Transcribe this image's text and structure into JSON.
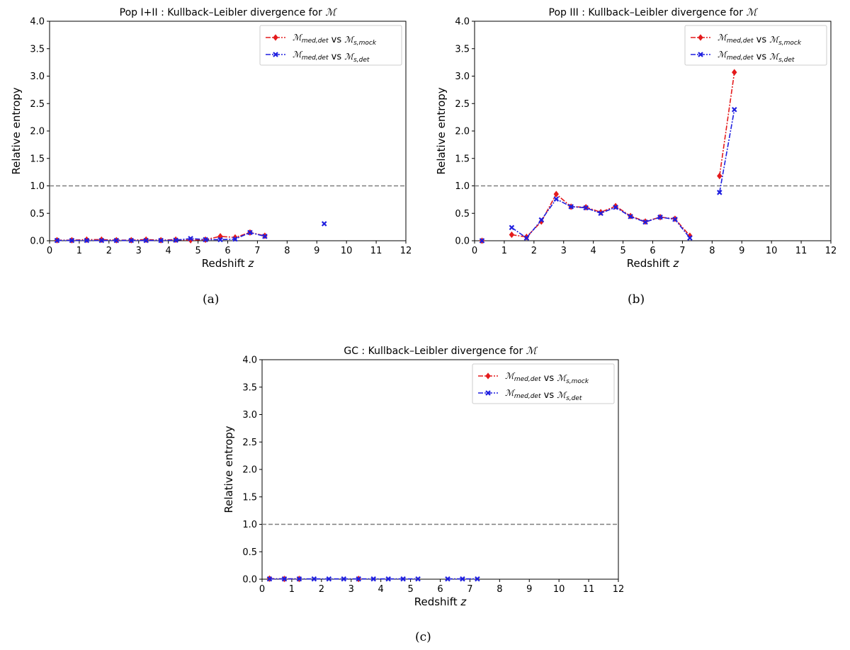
{
  "figure": {
    "captions": [
      "(a)",
      "(b)",
      "(c)"
    ]
  },
  "colors": {
    "series1": "#e41a1c",
    "series2": "#1f1fe0",
    "reference": "#7f7f7f"
  },
  "chart_data": [
    {
      "type": "line",
      "title": "Pop I+II : Kullback–Leibler divergence for ℳ",
      "xlabel": "Redshift z",
      "ylabel": "Relative entropy",
      "xlim": [
        0,
        12
      ],
      "ylim": [
        0,
        4.0
      ],
      "xticks": [
        "0",
        "1",
        "2",
        "3",
        "4",
        "5",
        "6",
        "7",
        "8",
        "9",
        "10",
        "11",
        "12"
      ],
      "yticks": [
        "0.0",
        "0.5",
        "1.0",
        "1.5",
        "2.0",
        "2.5",
        "3.0",
        "3.5",
        "4.0"
      ],
      "reference_line": 1.0,
      "legend_position": "top-right",
      "series": [
        {
          "name": "ℳmed,det vs ℳs,mock",
          "marker": "diamond",
          "segments": [
            [
              [
                0.25,
                0.01
              ],
              [
                0.75,
                0.01
              ],
              [
                1.25,
                0.02
              ],
              [
                1.75,
                0.02
              ],
              [
                2.25,
                0.01
              ],
              [
                2.75,
                0.01
              ],
              [
                3.25,
                0.02
              ],
              [
                3.75,
                0.01
              ],
              [
                4.25,
                0.02
              ],
              [
                4.75,
                0.01
              ],
              [
                5.25,
                0.02
              ],
              [
                5.75,
                0.08
              ],
              [
                6.25,
                0.06
              ],
              [
                6.75,
                0.15
              ],
              [
                7.25,
                0.09
              ]
            ]
          ]
        },
        {
          "name": "ℳmed,det vs ℳs,det",
          "marker": "x",
          "segments": [
            [
              [
                0.25,
                0.005
              ],
              [
                0.75,
                0.005
              ],
              [
                1.25,
                0.005
              ],
              [
                1.75,
                0.005
              ],
              [
                2.25,
                0.005
              ],
              [
                2.75,
                0.005
              ],
              [
                3.25,
                0.005
              ],
              [
                3.75,
                0.005
              ],
              [
                4.25,
                0.01
              ],
              [
                4.75,
                0.04
              ],
              [
                5.25,
                0.02
              ],
              [
                5.75,
                0.02
              ],
              [
                6.25,
                0.03
              ],
              [
                6.75,
                0.15
              ],
              [
                7.25,
                0.08
              ]
            ],
            [
              [
                9.25,
                0.31
              ]
            ]
          ]
        }
      ]
    },
    {
      "type": "line",
      "title": "Pop III : Kullback–Leibler divergence for ℳ",
      "xlabel": "Redshift z",
      "ylabel": "Relative entropy",
      "xlim": [
        0,
        12
      ],
      "ylim": [
        0,
        4.0
      ],
      "xticks": [
        "0",
        "1",
        "2",
        "3",
        "4",
        "5",
        "6",
        "7",
        "8",
        "9",
        "10",
        "11",
        "12"
      ],
      "yticks": [
        "0.0",
        "0.5",
        "1.0",
        "1.5",
        "2.0",
        "2.5",
        "3.0",
        "3.5",
        "4.0"
      ],
      "reference_line": 1.0,
      "legend_position": "top-right",
      "series": [
        {
          "name": "ℳmed,det vs ℳs,mock",
          "marker": "diamond",
          "segments": [
            [
              [
                0.25,
                0.0
              ]
            ],
            [
              [
                1.25,
                0.11
              ],
              [
                1.75,
                0.07
              ],
              [
                2.25,
                0.35
              ],
              [
                2.75,
                0.85
              ],
              [
                3.25,
                0.62
              ],
              [
                3.75,
                0.61
              ],
              [
                4.25,
                0.52
              ],
              [
                4.75,
                0.63
              ],
              [
                5.25,
                0.45
              ],
              [
                5.75,
                0.35
              ],
              [
                6.25,
                0.43
              ],
              [
                6.75,
                0.4
              ],
              [
                7.25,
                0.09
              ]
            ],
            [
              [
                8.25,
                1.18
              ],
              [
                8.75,
                3.07
              ]
            ]
          ]
        },
        {
          "name": "ℳmed,det vs ℳs,det",
          "marker": "x",
          "segments": [
            [
              [
                0.25,
                0.0
              ]
            ],
            [
              [
                1.25,
                0.24
              ],
              [
                1.75,
                0.05
              ],
              [
                2.25,
                0.38
              ],
              [
                2.75,
                0.76
              ],
              [
                3.25,
                0.62
              ],
              [
                3.75,
                0.6
              ],
              [
                4.25,
                0.5
              ],
              [
                4.75,
                0.61
              ],
              [
                5.25,
                0.44
              ],
              [
                5.75,
                0.34
              ],
              [
                6.25,
                0.43
              ],
              [
                6.75,
                0.39
              ],
              [
                7.25,
                0.05
              ]
            ],
            [
              [
                8.25,
                0.88
              ],
              [
                8.75,
                2.39
              ]
            ]
          ]
        }
      ]
    },
    {
      "type": "line",
      "title": "GC : Kullback–Leibler divergence for ℳ",
      "xlabel": "Redshift z",
      "ylabel": "Relative entropy",
      "xlim": [
        0,
        12
      ],
      "ylim": [
        0,
        4.0
      ],
      "xticks": [
        "0",
        "1",
        "2",
        "3",
        "4",
        "5",
        "6",
        "7",
        "8",
        "9",
        "10",
        "11",
        "12"
      ],
      "yticks": [
        "0.0",
        "0.5",
        "1.0",
        "1.5",
        "2.0",
        "2.5",
        "3.0",
        "3.5",
        "4.0"
      ],
      "reference_line": 1.0,
      "legend_position": "top-right",
      "series": [
        {
          "name": "ℳmed,det vs ℳs,mock",
          "marker": "diamond",
          "segments": [
            [
              [
                0.25,
                0.01
              ],
              [
                0.75,
                0.005
              ],
              [
                1.25,
                0.005
              ]
            ],
            [
              [
                3.25,
                0.005
              ]
            ]
          ]
        },
        {
          "name": "ℳmed,det vs ℳs,det",
          "marker": "x",
          "segments": [
            [
              [
                0.25,
                0.005
              ],
              [
                0.75,
                0.005
              ],
              [
                1.25,
                0.005
              ],
              [
                1.75,
                0.005
              ],
              [
                2.25,
                0.005
              ],
              [
                2.75,
                0.005
              ],
              [
                3.25,
                0.005
              ],
              [
                3.75,
                0.005
              ],
              [
                4.25,
                0.005
              ],
              [
                4.75,
                0.005
              ],
              [
                5.25,
                0.005
              ]
            ],
            [
              [
                6.25,
                0.005
              ],
              [
                6.75,
                0.005
              ],
              [
                7.25,
                0.005
              ]
            ]
          ]
        }
      ]
    }
  ]
}
